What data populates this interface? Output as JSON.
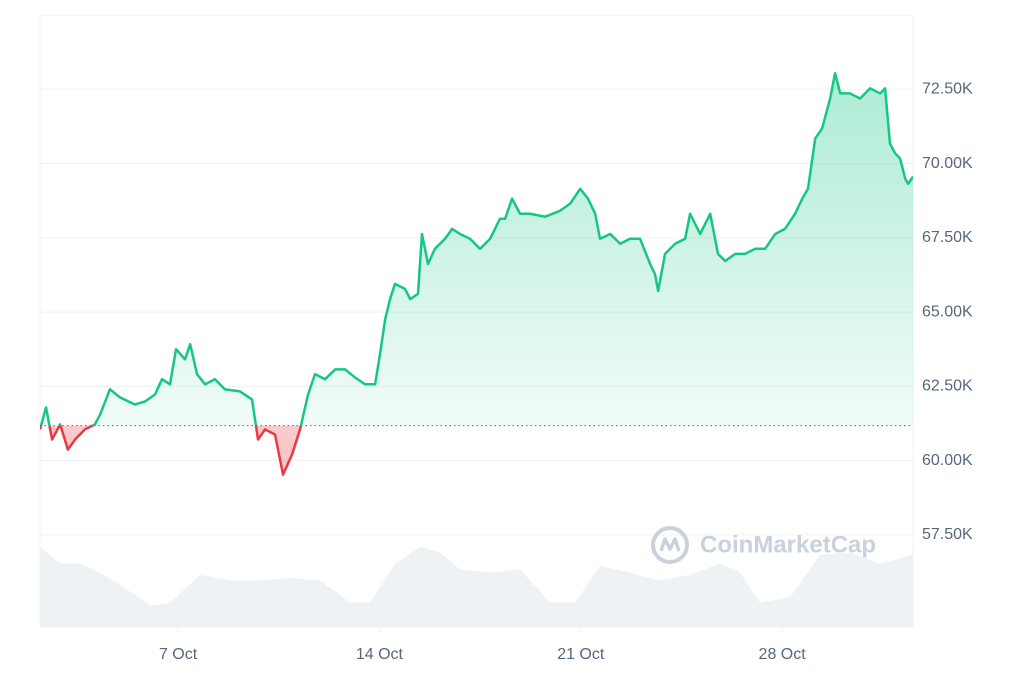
{
  "chart_data": {
    "type": "line",
    "watermark": "CoinMarketCap",
    "xlim": [
      2.2,
      32.55
    ],
    "xticks": [
      {
        "value": 7,
        "label": "7 Oct"
      },
      {
        "value": 14,
        "label": "14 Oct"
      },
      {
        "value": 21,
        "label": "21 Oct"
      },
      {
        "value": 28,
        "label": "28 Oct"
      }
    ],
    "ylim": [
      54400,
      75000
    ],
    "yticks": [
      {
        "value": 57500,
        "label": "57.50K"
      },
      {
        "value": 60000,
        "label": "60.00K"
      },
      {
        "value": 62500,
        "label": "62.50K"
      },
      {
        "value": 65000,
        "label": "65.00K"
      },
      {
        "value": 67500,
        "label": "67.50K"
      },
      {
        "value": 70000,
        "label": "70.00K"
      },
      {
        "value": 72500,
        "label": "72.50K"
      }
    ],
    "grid": true,
    "baseline": 61180,
    "below_color": "#ea3943",
    "series": [
      {
        "color": "#16c784",
        "x": [
          2.2,
          2.41,
          2.62,
          2.9,
          3.17,
          3.42,
          3.76,
          4.11,
          4.29,
          4.63,
          4.98,
          5.5,
          5.85,
          6.2,
          6.44,
          6.72,
          6.93,
          7.24,
          7.42,
          7.66,
          7.94,
          8.28,
          8.63,
          9.15,
          9.57,
          9.78,
          10.02,
          10.37,
          10.65,
          10.96,
          11.24,
          11.52,
          11.76,
          12.11,
          12.46,
          12.81,
          13.15,
          13.5,
          13.85,
          14.02,
          14.2,
          14.37,
          14.54,
          14.89,
          15.07,
          15.34,
          15.48,
          15.69,
          15.93,
          16.28,
          16.53,
          16.8,
          17.15,
          17.5,
          17.85,
          18.19,
          18.37,
          18.61,
          18.89,
          19.24,
          19.76,
          20.28,
          20.63,
          20.98,
          21.25,
          21.5,
          21.67,
          22.02,
          22.37,
          22.71,
          23.06,
          23.41,
          23.58,
          23.69,
          23.93,
          24.28,
          24.63,
          24.8,
          25.15,
          25.5,
          25.77,
          26.02,
          26.37,
          26.71,
          27.06,
          27.41,
          27.76,
          28.1,
          28.45,
          28.7,
          28.9,
          29.15,
          29.39,
          29.67,
          29.84,
          30.02,
          30.36,
          30.71,
          31.06,
          31.41,
          31.58,
          31.75,
          31.93,
          32.1,
          32.28,
          32.38,
          32.55
        ],
        "values": [
          61050,
          61790,
          60710,
          61220,
          60370,
          60710,
          61050,
          61220,
          61550,
          62400,
          62130,
          61890,
          61990,
          62230,
          62740,
          62570,
          63750,
          63410,
          63920,
          62910,
          62570,
          62740,
          62400,
          62330,
          62060,
          60710,
          61050,
          60880,
          59530,
          60200,
          61050,
          62230,
          62910,
          62740,
          63070,
          63070,
          62800,
          62570,
          62570,
          63580,
          64760,
          65440,
          65950,
          65780,
          65440,
          65610,
          67630,
          66620,
          67130,
          67470,
          67800,
          67630,
          67470,
          67130,
          67470,
          68140,
          68140,
          68820,
          68310,
          68310,
          68210,
          68410,
          68650,
          69150,
          68820,
          68310,
          67470,
          67630,
          67300,
          67470,
          67470,
          66620,
          66280,
          65710,
          66960,
          67300,
          67470,
          68310,
          67630,
          68310,
          66960,
          66720,
          66960,
          66960,
          67130,
          67130,
          67630,
          67800,
          68310,
          68820,
          69150,
          70840,
          71180,
          72190,
          73040,
          72360,
          72360,
          72190,
          72530,
          72360,
          72530,
          70670,
          70340,
          70170,
          69490,
          69320,
          69560
        ]
      }
    ],
    "volume": {
      "color": "#eff2f5",
      "x": [
        2.2,
        2.9,
        3.59,
        4.29,
        5.33,
        6.03,
        6.72,
        7.77,
        8.81,
        9.85,
        10.9,
        11.94,
        12.98,
        13.68,
        14.54,
        15.41,
        16.11,
        16.8,
        17.85,
        18.89,
        19.93,
        20.8,
        21.67,
        22.71,
        23.76,
        24.8,
        25.84,
        26.54,
        27.23,
        28.28,
        29.32,
        30.36,
        31.41,
        32.55
      ],
      "values": [
        72,
        57,
        57,
        49,
        32,
        19,
        22,
        47,
        42,
        42,
        44,
        42,
        22,
        22,
        57,
        72,
        67,
        52,
        49,
        52,
        22,
        22,
        55,
        49,
        42,
        47,
        57,
        49,
        22,
        27,
        65,
        67,
        57,
        65
      ]
    }
  }
}
